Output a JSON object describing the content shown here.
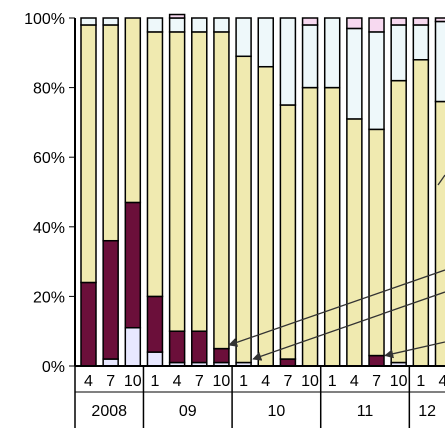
{
  "chart_data": {
    "type": "bar",
    "stacked": true,
    "percent": true,
    "ylim": [
      0,
      100
    ],
    "yticks": [
      "0%",
      "20%",
      "40%",
      "60%",
      "80%",
      "100%"
    ],
    "categories": [
      "4",
      "7",
      "10",
      "1",
      "4",
      "7",
      "10",
      "1",
      "4",
      "7",
      "10",
      "1",
      "4",
      "7",
      "10",
      "1",
      "4"
    ],
    "year_groups": [
      {
        "label": "2008",
        "months": [
          "4",
          "7",
          "10"
        ]
      },
      {
        "label": "09",
        "months": [
          "1",
          "4",
          "7",
          "10"
        ]
      },
      {
        "label": "10",
        "months": [
          "1",
          "4",
          "7",
          "10"
        ]
      },
      {
        "label": "11",
        "months": [
          "1",
          "4",
          "7",
          "10"
        ]
      },
      {
        "label": "12",
        "months": [
          "1",
          "4"
        ]
      }
    ],
    "series": [
      {
        "color": "#e8e8ff",
        "values": [
          0,
          2,
          11,
          4,
          1,
          1,
          1,
          1,
          0,
          0,
          0,
          0,
          0,
          0,
          1,
          0,
          0
        ]
      },
      {
        "color": "#6b0f3a",
        "values": [
          24,
          34,
          36,
          16,
          9,
          9,
          4,
          0,
          0,
          2,
          0,
          0,
          0,
          3,
          0,
          0,
          0
        ]
      },
      {
        "color": "#f0eab0",
        "values": [
          74,
          62,
          53,
          76,
          86,
          86,
          91,
          88,
          86,
          73,
          80,
          80,
          71,
          65,
          81,
          88,
          76
        ]
      },
      {
        "color": "#eef8fa",
        "values": [
          2,
          2,
          0,
          4,
          4,
          4,
          4,
          11,
          14,
          25,
          18,
          20,
          26,
          28,
          16,
          10,
          23
        ]
      },
      {
        "color": "#f7d9f0",
        "values": [
          0,
          0,
          0,
          0,
          1,
          0,
          0,
          0,
          0,
          0,
          2,
          0,
          3,
          4,
          2,
          2,
          1
        ]
      }
    ]
  }
}
